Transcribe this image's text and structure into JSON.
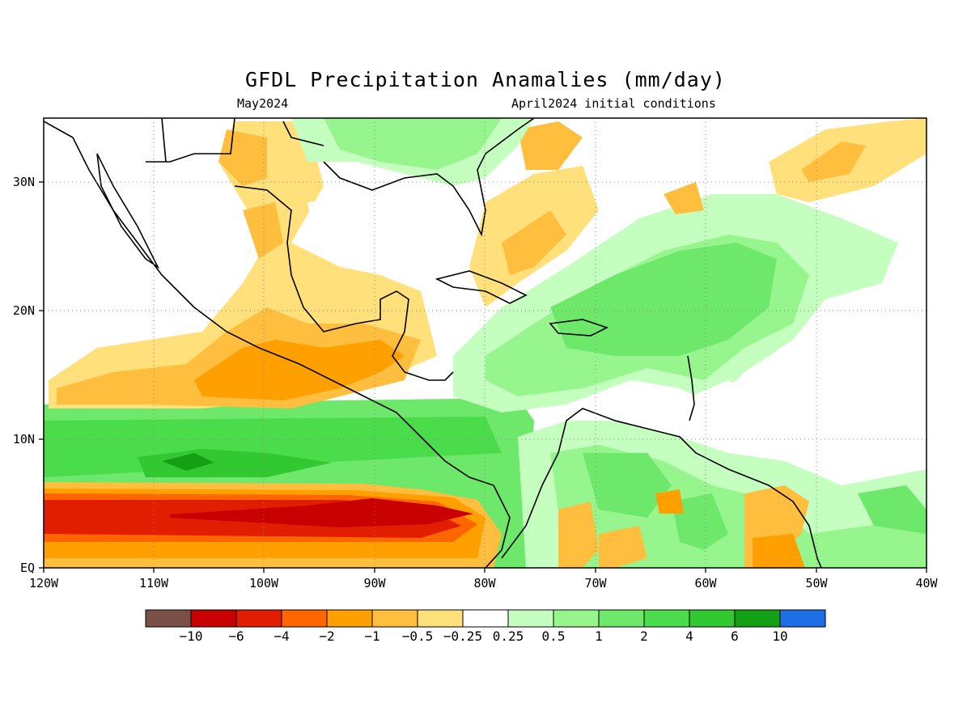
{
  "title": "GFDL Precipitation Anamalies (mm/day)",
  "subtitle_left": "May2024",
  "subtitle_right": "April2024 initial conditions",
  "map": {
    "lon_ticks": [
      "120W",
      "110W",
      "100W",
      "90W",
      "80W",
      "70W",
      "60W",
      "50W",
      "40W"
    ],
    "lat_ticks": [
      "EQ",
      "10N",
      "20N",
      "30N"
    ]
  },
  "colorbar": {
    "colors": [
      "#7a4f45",
      "#c80000",
      "#e11e00",
      "#ff6600",
      "#ff9f00",
      "#ffbe3d",
      "#ffe07a",
      "#ffffff",
      "#c4ffc0",
      "#96f58c",
      "#6ee86a",
      "#4bdc4b",
      "#32c832",
      "#14a014",
      "#1e6ee6"
    ],
    "labels": [
      "−10",
      "−6",
      "−4",
      "−2",
      "−1",
      "−0.5",
      "−0.25",
      "0.25",
      "0.5",
      "1",
      "2",
      "4",
      "6",
      "10"
    ]
  }
}
